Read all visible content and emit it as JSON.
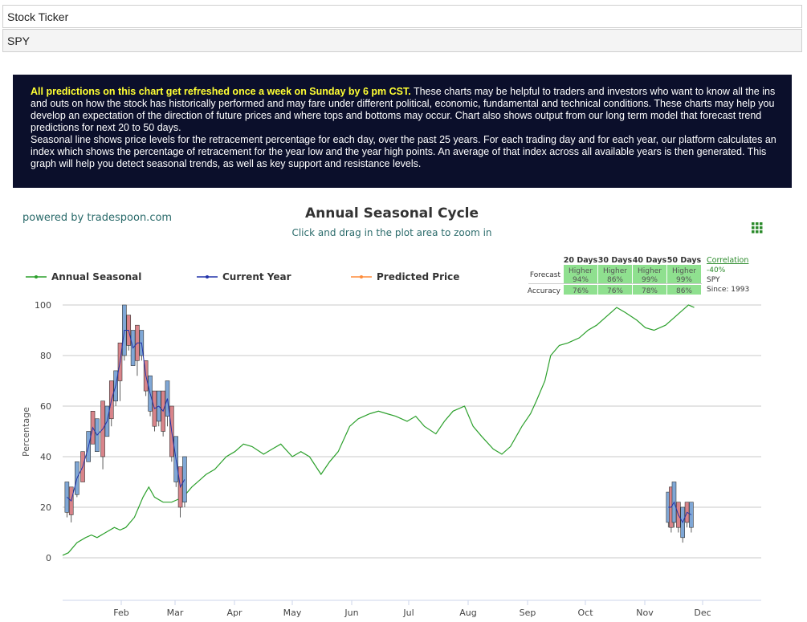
{
  "inputs": {
    "label": "Stock Ticker",
    "value": "SPY"
  },
  "banner": {
    "highlight": "All predictions on this chart get refreshed once a week on Sunday by 6 pm CST.",
    "text1": " These charts may be helpful to traders and investors who want to know all the ins and outs on how the stock has historically performed and may fare under different political, economic, fundamental and technical conditions. These charts may help you develop an expectation of the direction of future prices and where tops and bottoms may occur. Chart also shows output from our long term model that forecast trend predictions for next 20 to 50 days.",
    "text2": "Seasonal line shows price levels for the retracement percentage for each day, over the past 25 years. For each trading day and for each year, our platform calculates an index which shows the percentage of retracement for the year low and the year high points. An average of that index across all available years is then generated. This graph will help you detect seasonal trends, as well as key support and resistance levels."
  },
  "colors": {
    "seasonal": "#2ca02c",
    "current_up": "#7fa7d6",
    "current_down": "#d9848a",
    "current_line": "#2233aa",
    "predicted": "#ff8c3a",
    "table_cell": "#8fe08f",
    "brand": "#2b6b6b"
  },
  "chart_data": {
    "type": "line",
    "branding": "powered by tradespoon.com",
    "title": "Annual Seasonal Cycle",
    "subtitle": "Click and drag in the plot area to zoom in",
    "ylabel": "Percentage",
    "ylim": [
      0,
      100
    ],
    "yticks": [
      "0",
      "20",
      "40",
      "60",
      "80",
      "100"
    ],
    "months": [
      "Feb",
      "Mar",
      "Apr",
      "May",
      "Jun",
      "Jul",
      "Aug",
      "Sep",
      "Oct",
      "Nov",
      "Dec"
    ],
    "grid": true,
    "legend": [
      "Annual Seasonal",
      "Current Year",
      "Predicted Price"
    ],
    "legend_position": "top-left",
    "series": [
      {
        "name": "Annual Seasonal",
        "points": [
          [
            0.0,
            1
          ],
          [
            0.2,
            2
          ],
          [
            0.5,
            6
          ],
          [
            0.8,
            8
          ],
          [
            1.0,
            9
          ],
          [
            1.2,
            8
          ],
          [
            1.5,
            10
          ],
          [
            1.8,
            12
          ],
          [
            2.0,
            11
          ],
          [
            2.2,
            12
          ],
          [
            2.5,
            16
          ],
          [
            2.8,
            24
          ],
          [
            3.0,
            28
          ],
          [
            3.2,
            24
          ],
          [
            3.5,
            22
          ],
          [
            3.8,
            22
          ],
          [
            4.0,
            23
          ],
          [
            4.2,
            24
          ],
          [
            4.5,
            28
          ],
          [
            4.8,
            31
          ],
          [
            5.0,
            33
          ],
          [
            5.3,
            35
          ],
          [
            5.7,
            40
          ],
          [
            6.0,
            42
          ],
          [
            6.3,
            45
          ],
          [
            6.6,
            44
          ],
          [
            7.0,
            41
          ],
          [
            7.3,
            43
          ],
          [
            7.6,
            45
          ],
          [
            8.0,
            40
          ],
          [
            8.3,
            42
          ],
          [
            8.6,
            40
          ],
          [
            9.0,
            33
          ],
          [
            9.3,
            38
          ],
          [
            9.6,
            42
          ],
          [
            10.0,
            52
          ],
          [
            10.3,
            55
          ],
          [
            10.7,
            57
          ],
          [
            11.0,
            58
          ],
          [
            11.3,
            57
          ],
          [
            11.6,
            56
          ],
          [
            12.0,
            54
          ],
          [
            12.3,
            56
          ],
          [
            12.6,
            52
          ],
          [
            13.0,
            49
          ],
          [
            13.3,
            54
          ],
          [
            13.6,
            58
          ],
          [
            14.0,
            60
          ],
          [
            14.3,
            52
          ],
          [
            14.6,
            48
          ],
          [
            15.0,
            43
          ],
          [
            15.3,
            41
          ],
          [
            15.6,
            44
          ],
          [
            16.0,
            52
          ],
          [
            16.3,
            57
          ],
          [
            16.5,
            62
          ],
          [
            16.8,
            70
          ],
          [
            17.0,
            80
          ],
          [
            17.3,
            84
          ],
          [
            17.6,
            85
          ],
          [
            18.0,
            87
          ],
          [
            18.3,
            90
          ],
          [
            18.6,
            92
          ],
          [
            19.0,
            96
          ],
          [
            19.3,
            99
          ],
          [
            19.6,
            97
          ],
          [
            20.0,
            94
          ],
          [
            20.3,
            91
          ],
          [
            20.6,
            90
          ],
          [
            21.0,
            92
          ],
          [
            21.3,
            95
          ],
          [
            21.6,
            98
          ],
          [
            21.8,
            100
          ],
          [
            22.0,
            99
          ]
        ]
      },
      {
        "name": "Current Year",
        "ohlc": [
          [
            0.15,
            22,
            30,
            18,
            16
          ],
          [
            0.3,
            25,
            28,
            17,
            14
          ],
          [
            0.5,
            32,
            38,
            25,
            24
          ],
          [
            0.7,
            40,
            42,
            30,
            30
          ],
          [
            0.9,
            48,
            50,
            38,
            38
          ],
          [
            1.05,
            55,
            58,
            45,
            45
          ],
          [
            1.2,
            52,
            55,
            42,
            42
          ],
          [
            1.4,
            60,
            62,
            40,
            35
          ],
          [
            1.55,
            58,
            60,
            48,
            48
          ],
          [
            1.7,
            68,
            70,
            55,
            52
          ],
          [
            1.85,
            72,
            74,
            62,
            60
          ],
          [
            2.0,
            78,
            85,
            70,
            62
          ],
          [
            2.15,
            90,
            100,
            80,
            78
          ],
          [
            2.3,
            92,
            96,
            84,
            82
          ],
          [
            2.45,
            82,
            90,
            76,
            76
          ],
          [
            2.6,
            88,
            92,
            78,
            72
          ],
          [
            2.75,
            85,
            90,
            80,
            78
          ],
          [
            2.9,
            74,
            78,
            66,
            64
          ],
          [
            3.05,
            64,
            72,
            58,
            56
          ],
          [
            3.2,
            60,
            66,
            52,
            50
          ],
          [
            3.35,
            62,
            66,
            54,
            52
          ],
          [
            3.5,
            58,
            66,
            50,
            48
          ],
          [
            3.65,
            64,
            70,
            56,
            52
          ],
          [
            3.8,
            56,
            60,
            40,
            38
          ],
          [
            3.95,
            44,
            48,
            30,
            28
          ],
          [
            4.1,
            30,
            36,
            20,
            16
          ],
          [
            4.25,
            36,
            40,
            22,
            20
          ]
        ]
      },
      {
        "name": "Current Year (Dec)",
        "ohlc": [
          [
            21.1,
            20,
            26,
            14,
            12
          ],
          [
            21.2,
            18,
            28,
            12,
            10
          ],
          [
            21.3,
            20,
            30,
            14,
            12
          ],
          [
            21.45,
            18,
            22,
            12,
            10
          ],
          [
            21.6,
            16,
            20,
            8,
            6
          ],
          [
            21.75,
            20,
            22,
            14,
            12
          ],
          [
            21.9,
            18,
            22,
            12,
            10
          ]
        ]
      },
      {
        "name": "Predicted Price",
        "points": []
      }
    ],
    "forecast_table": {
      "headers": [
        "20 Days",
        "30 Days",
        "40 Days",
        "50 Days"
      ],
      "row_labels": [
        "Forecast",
        "Accuracy"
      ],
      "forecast": [
        [
          "Higher",
          "94%"
        ],
        [
          "Higher",
          "86%"
        ],
        [
          "Higher",
          "99%"
        ],
        [
          "Higher",
          "99%"
        ]
      ],
      "accuracy": [
        "76%",
        "76%",
        "78%",
        "86%"
      ],
      "correlation_label": "Correlation",
      "correlation_value": "-40%",
      "ticker": "SPY",
      "since": "Since: 1993"
    }
  }
}
